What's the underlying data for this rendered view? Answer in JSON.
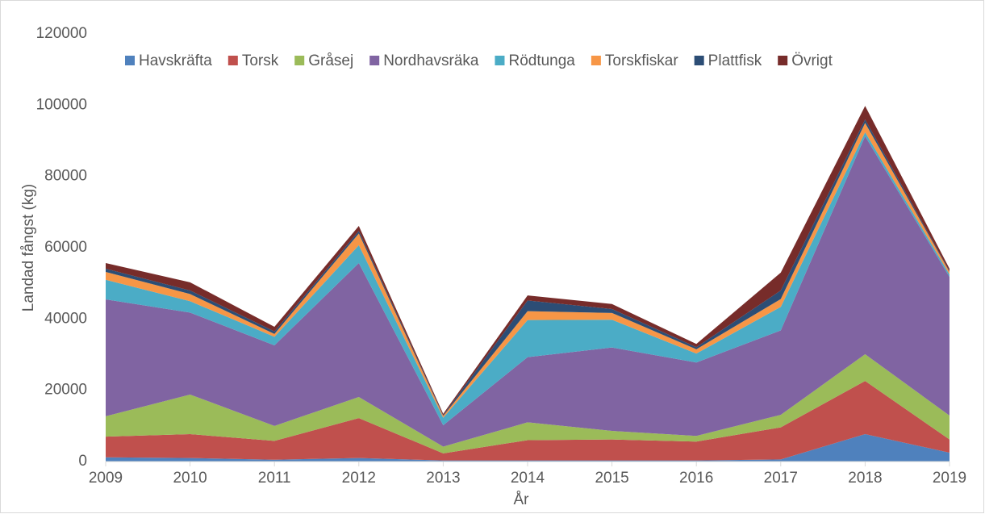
{
  "chart_data": {
    "type": "stacked_area",
    "x_label": "År",
    "y_label": "Landad fångst (kg)",
    "categories": [
      "2009",
      "2010",
      "2011",
      "2012",
      "2013",
      "2014",
      "2015",
      "2016",
      "2017",
      "2018",
      "2019"
    ],
    "series": [
      {
        "name": "Havskräfta",
        "color": "#4f81bd",
        "values": [
          1200,
          1000,
          500,
          1000,
          300,
          300,
          300,
          300,
          600,
          7700,
          2500
        ]
      },
      {
        "name": "Torsk",
        "color": "#c0504d",
        "values": [
          5800,
          6700,
          5300,
          11200,
          2000,
          5700,
          5900,
          5300,
          9000,
          14900,
          3700
        ]
      },
      {
        "name": "Gråsej",
        "color": "#9bbb59",
        "values": [
          5700,
          11100,
          4200,
          5900,
          1900,
          5000,
          2400,
          1600,
          3500,
          7500,
          6700
        ]
      },
      {
        "name": "Nordhavsräka",
        "color": "#8064a2",
        "values": [
          32800,
          23000,
          22600,
          37600,
          6000,
          18300,
          23400,
          20600,
          23700,
          61200,
          38900
        ]
      },
      {
        "name": "Rödtunga",
        "color": "#4bacc6",
        "values": [
          5500,
          3200,
          2400,
          5000,
          2100,
          10400,
          7800,
          2500,
          6600,
          1100,
          700
        ]
      },
      {
        "name": "Torskfiskar",
        "color": "#f79646",
        "values": [
          2200,
          2000,
          800,
          3300,
          500,
          2500,
          1900,
          1200,
          2200,
          2600,
          700
        ]
      },
      {
        "name": "Plattfisk",
        "color": "#2c4d75",
        "values": [
          900,
          1000,
          700,
          700,
          200,
          3000,
          1100,
          600,
          2400,
          1000,
          200
        ]
      },
      {
        "name": "Övrigt",
        "color": "#772c2a",
        "values": [
          1600,
          2300,
          1300,
          1400,
          400,
          1400,
          1400,
          900,
          5000,
          3800,
          700
        ]
      }
    ],
    "ylim": [
      0,
      120000
    ],
    "yticks": [
      0,
      20000,
      40000,
      60000,
      80000,
      100000,
      120000
    ],
    "grid": false
  }
}
